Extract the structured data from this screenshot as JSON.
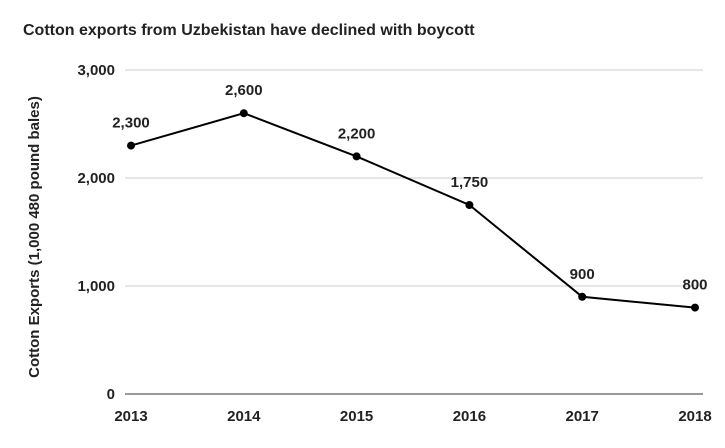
{
  "chart_data": {
    "type": "line",
    "title": "Cotton exports from Uzbekistan have declined with boycott",
    "xlabel": "",
    "ylabel": "Cotton Exports (1,000 480 pound bales)",
    "categories": [
      "2013",
      "2014",
      "2015",
      "2016",
      "2017",
      "2018"
    ],
    "series": [
      {
        "values": [
          2300,
          2600,
          2200,
          1750,
          900,
          800
        ],
        "labels": [
          "2,300",
          "2,600",
          "2,200",
          "1,750",
          "900",
          "800"
        ],
        "color": "#000000"
      }
    ],
    "ylim": [
      0,
      3000
    ],
    "yticks": [
      0,
      1000,
      2000,
      3000
    ],
    "ytick_labels": [
      "0",
      "1,000",
      "2,000",
      "3,000"
    ],
    "grid": true,
    "legend": "none"
  }
}
